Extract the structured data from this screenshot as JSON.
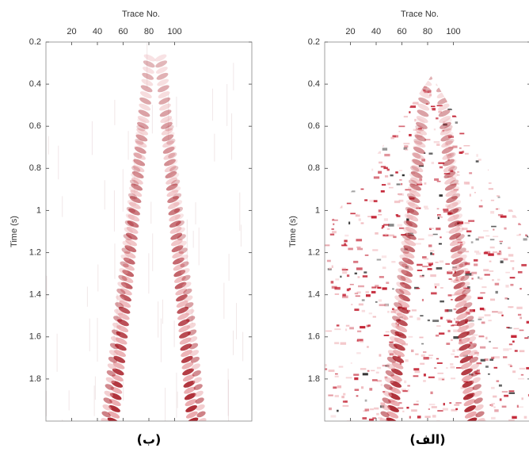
{
  "chart_data": [
    {
      "type": "image",
      "xlabel": "Trace No.",
      "ylabel": "Time (s)",
      "caption": "(ب)",
      "xlim": [
        0,
        160
      ],
      "xticks": [
        20,
        40,
        60,
        80,
        100
      ],
      "ylim": [
        0.2,
        2.0
      ],
      "yticks": [
        0.2,
        0.4,
        0.6,
        0.8,
        1,
        1.2,
        1.4,
        1.6,
        1.8
      ]
    },
    {
      "type": "image",
      "xlabel": "Trace No.",
      "ylabel": "Time (s)",
      "caption": "(الف)",
      "xlim": [
        0,
        160
      ],
      "xticks": [
        20,
        40,
        60,
        80,
        100
      ],
      "ylim": [
        0.2,
        2.0
      ],
      "yticks": [
        0.2,
        0.4,
        0.6,
        0.8,
        1,
        1.2,
        1.4,
        1.6,
        1.8
      ]
    }
  ]
}
